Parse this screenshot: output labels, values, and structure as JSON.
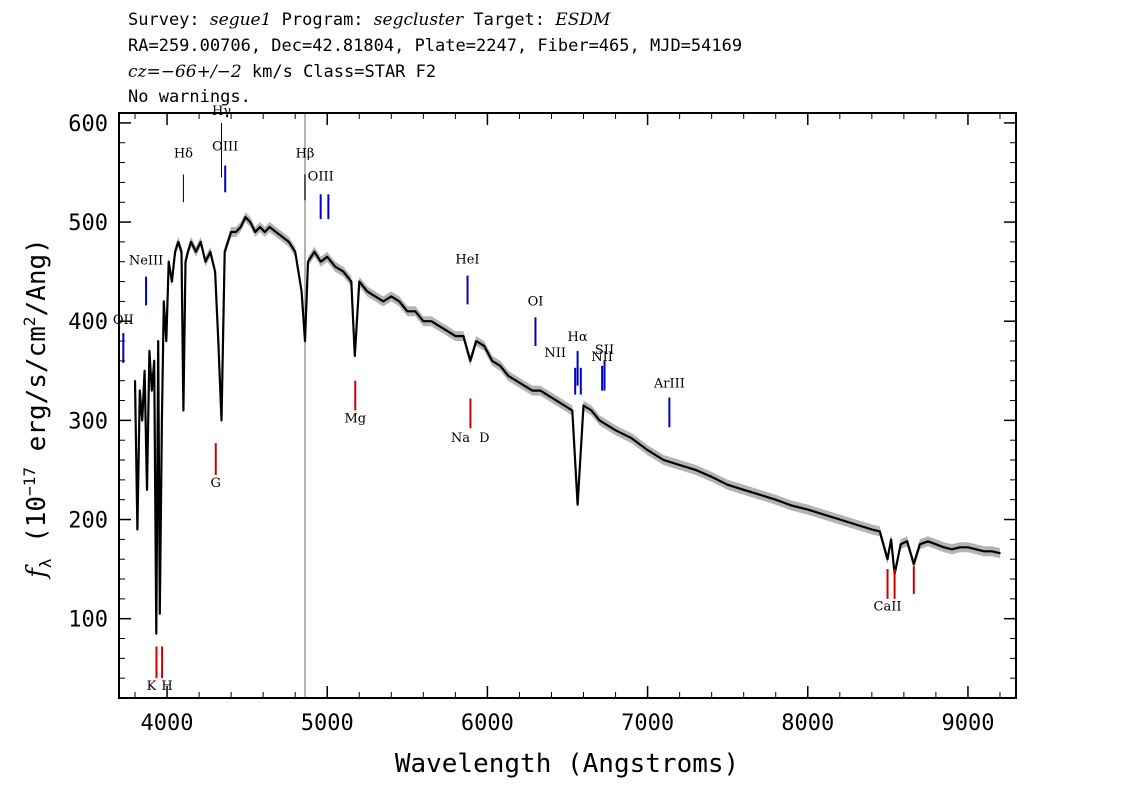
{
  "header": {
    "line1": {
      "survey_label": "Survey:",
      "survey": "segue1",
      "program_label": "Program:",
      "program": "segcluster",
      "target_label": "Target:",
      "target": "ESDM"
    },
    "line2": "RA=259.00706, Dec=42.81804, Plate=2247, Fiber=465, MJD=54169",
    "line3": {
      "cz_label": "cz=",
      "cz_value": "−66+/−2",
      "cz_rest": " km/s Class=STAR F2"
    },
    "line4": "No warnings."
  },
  "colors": {
    "spectrum": "#000000",
    "error_band": "#b4b4b4",
    "emission_line": "#0000cc",
    "absorption_line": "#cc0000",
    "marker_line": "#b4b4b4"
  },
  "chart_data": {
    "type": "line",
    "xlabel": "Wavelength (Angstroms)",
    "ylabel_html": "fλ (10⁻¹⁷ erg/s/cm²/Ang)",
    "ylabel_parts": {
      "f": "f",
      "lambda": "λ",
      "prefix": " (10",
      "exp1": "−17",
      "mid": " erg/s/cm",
      "exp2": "2",
      "suffix": "/Ang)"
    },
    "xlim": [
      3700,
      9300
    ],
    "ylim": [
      20,
      610
    ],
    "xticks": [
      4000,
      5000,
      6000,
      7000,
      8000,
      9000
    ],
    "yticks": [
      100,
      200,
      300,
      400,
      500,
      600
    ],
    "marker_x": 4861,
    "series": [
      {
        "x": [
          3800,
          3815,
          3830,
          3845,
          3860,
          3875,
          3890,
          3905,
          3920,
          3933,
          3945,
          3955,
          3968,
          3980,
          3995,
          4010,
          4030,
          4050,
          4070,
          4090,
          4102,
          4115,
          4130,
          4150,
          4180,
          4210,
          4240,
          4270,
          4300,
          4320,
          4340,
          4360,
          4380,
          4400,
          4430,
          4460,
          4490,
          4520,
          4550,
          4580,
          4610,
          4640,
          4680,
          4720,
          4760,
          4800,
          4840,
          4861,
          4880,
          4920,
          4960,
          5000,
          5050,
          5100,
          5150,
          5172,
          5200,
          5250,
          5300,
          5350,
          5400,
          5450,
          5500,
          5550,
          5600,
          5650,
          5700,
          5750,
          5800,
          5850,
          5893,
          5930,
          5980,
          6030,
          6080,
          6130,
          6180,
          6230,
          6280,
          6330,
          6380,
          6430,
          6480,
          6530,
          6563,
          6600,
          6650,
          6700,
          6800,
          6900,
          7000,
          7100,
          7200,
          7300,
          7400,
          7500,
          7600,
          7700,
          7800,
          7900,
          8000,
          8100,
          8200,
          8300,
          8400,
          8450,
          8498,
          8520,
          8542,
          8580,
          8620,
          8662,
          8700,
          8750,
          8800,
          8850,
          8900,
          8950,
          9000,
          9050,
          9100,
          9150,
          9200
        ],
        "y": [
          340,
          190,
          330,
          300,
          350,
          230,
          370,
          330,
          360,
          85,
          380,
          105,
          300,
          420,
          380,
          460,
          440,
          470,
          480,
          470,
          310,
          460,
          470,
          480,
          470,
          480,
          460,
          470,
          450,
          380,
          300,
          470,
          480,
          490,
          490,
          495,
          505,
          500,
          490,
          495,
          490,
          495,
          490,
          485,
          480,
          470,
          430,
          380,
          460,
          470,
          460,
          465,
          455,
          450,
          440,
          365,
          440,
          430,
          425,
          420,
          425,
          420,
          410,
          410,
          400,
          400,
          395,
          390,
          385,
          385,
          360,
          380,
          375,
          360,
          355,
          345,
          340,
          335,
          330,
          330,
          325,
          320,
          315,
          310,
          215,
          315,
          310,
          300,
          290,
          282,
          270,
          260,
          255,
          250,
          243,
          235,
          230,
          225,
          220,
          214,
          210,
          205,
          200,
          195,
          190,
          188,
          160,
          180,
          145,
          175,
          178,
          155,
          175,
          178,
          175,
          172,
          170,
          172,
          172,
          170,
          168,
          168,
          166
        ]
      }
    ],
    "line_labels": [
      {
        "label": "Hγ",
        "x": 4340,
        "kind": "emission",
        "color": "black",
        "y0": 545,
        "y1": 600,
        "ty": 608
      },
      {
        "label": "Hδ",
        "x": 4102,
        "kind": "emission",
        "color": "black",
        "y0": 520,
        "y1": 548,
        "ty": 565
      },
      {
        "label": "OIII",
        "x": 4363,
        "kind": "emission",
        "color": "blue",
        "y0": 530,
        "y1": 557,
        "ty": 572
      },
      {
        "label": "Hβ",
        "x": 4861,
        "kind": "emission",
        "color": "black",
        "y0": 522,
        "y1": 548,
        "ty": 565
      },
      {
        "label": "OIII",
        "x": 4959,
        "kind": "emission",
        "color": "blue",
        "y0": 503,
        "y1": 528,
        "ty": 542
      },
      {
        "label": "",
        "x": 5007,
        "kind": "emission",
        "color": "blue",
        "y0": 503,
        "y1": 528,
        "ty": 542
      },
      {
        "label": "NeIII",
        "x": 3869,
        "kind": "emission",
        "color": "blue",
        "y0": 416,
        "y1": 445,
        "ty": 457
      },
      {
        "label": "OII",
        "x": 3727,
        "kind": "emission",
        "color": "blue",
        "y0": 358,
        "y1": 388,
        "ty": 397
      },
      {
        "label": "HeI",
        "x": 5876,
        "kind": "emission",
        "color": "blue",
        "y0": 417,
        "y1": 446,
        "ty": 458
      },
      {
        "label": "OI",
        "x": 6300,
        "kind": "emission",
        "color": "blue",
        "y0": 375,
        "y1": 404,
        "ty": 416
      },
      {
        "label": "Hα",
        "x": 6563,
        "kind": "emission",
        "color": "blue",
        "y0": 335,
        "y1": 370,
        "ty": 380
      },
      {
        "label": "NII",
        "x": 6548,
        "kind": "emission",
        "color": "blue",
        "y0": 326,
        "y1": 353,
        "ty": 364
      },
      {
        "label": "",
        "x": 6583,
        "kind": "emission",
        "color": "blue",
        "y0": 326,
        "y1": 353,
        "ty": 364
      },
      {
        "label": "NII",
        "x": 6716,
        "kind": "emission",
        "color": "blue",
        "y0": 330,
        "y1": 355,
        "ty": 360
      },
      {
        "label": "SII",
        "x": 6731,
        "kind": "emission",
        "color": "blue",
        "y0": 330,
        "y1": 360,
        "ty": 367
      },
      {
        "label": "ArIII",
        "x": 7136,
        "kind": "emission",
        "color": "blue",
        "y0": 293,
        "y1": 323,
        "ty": 333
      },
      {
        "label": "K",
        "x": 3934,
        "kind": "absorption",
        "color": "red",
        "y0": 40,
        "y1": 72,
        "ty": 28
      },
      {
        "label": "H",
        "x": 3969,
        "kind": "absorption",
        "color": "red",
        "y0": 40,
        "y1": 72,
        "ty": 28
      },
      {
        "label": "G",
        "x": 4304,
        "kind": "absorption",
        "color": "red",
        "y0": 245,
        "y1": 277,
        "ty": 233
      },
      {
        "label": "Mg",
        "x": 5175,
        "kind": "absorption",
        "color": "red",
        "y0": 310,
        "y1": 340,
        "ty": 298
      },
      {
        "label": "Na",
        "x": 5894,
        "kind": "absorption",
        "color": "red",
        "y0": 292,
        "y1": 322,
        "ty": 278
      },
      {
        "label": "D",
        "x": 5894,
        "kind": "absorption",
        "color": "red",
        "y0": 292,
        "y1": 292,
        "ty": 278
      },
      {
        "label": "CaII",
        "x": 8498,
        "kind": "absorption",
        "color": "red",
        "y0": 120,
        "y1": 150,
        "ty": 108
      },
      {
        "label": "",
        "x": 8542,
        "kind": "absorption",
        "color": "red",
        "y0": 120,
        "y1": 150,
        "ty": 108
      },
      {
        "label": "",
        "x": 8662,
        "kind": "absorption",
        "color": "red",
        "y0": 125,
        "y1": 153,
        "ty": 108
      }
    ]
  }
}
